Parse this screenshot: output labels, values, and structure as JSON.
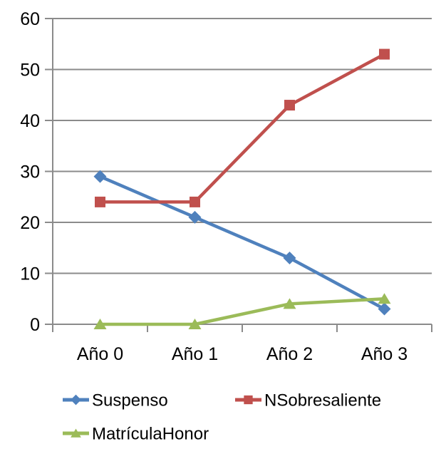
{
  "chart": {
    "background": "#FFFFFF",
    "text_color": "#000000",
    "grid_color": "#8B8B8B",
    "axis_color": "#8B8B8B"
  },
  "chart_data": {
    "type": "line",
    "title": "",
    "xlabel": "",
    "ylabel": "",
    "categories": [
      "Año 0",
      "Año 1",
      "Año 2",
      "Año 3"
    ],
    "series": [
      {
        "name": "Suspenso",
        "color": "#4F81BD",
        "marker": "diamond",
        "values": [
          29,
          21,
          13,
          3
        ]
      },
      {
        "name": "NSobresaliente",
        "color": "#C0504D",
        "marker": "square",
        "values": [
          24,
          24,
          43,
          53
        ]
      },
      {
        "name": "MatrículaHonor",
        "color": "#9BBB59",
        "marker": "triangle",
        "values": [
          0,
          0,
          4,
          5
        ]
      }
    ],
    "ylim": [
      0,
      60
    ],
    "y_tick_step": 10,
    "y_tick_labels": [
      "0",
      "10",
      "20",
      "30",
      "40",
      "50",
      "60"
    ],
    "grid": true,
    "legend_position": "bottom"
  }
}
